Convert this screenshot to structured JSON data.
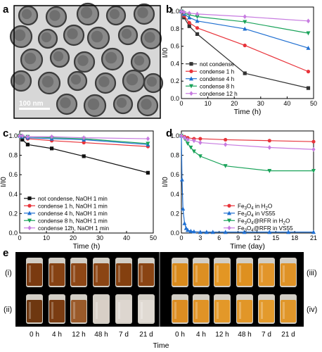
{
  "panels": {
    "a": {
      "letter": "a",
      "scale_bar": "100 nm"
    },
    "b": {
      "letter": "b"
    },
    "c": {
      "letter": "c"
    },
    "d": {
      "letter": "d"
    },
    "e": {
      "letter": "e"
    }
  },
  "chart_data": [
    {
      "id": "b",
      "type": "line",
      "xlabel": "Time (h)",
      "ylabel": "I/I0",
      "xlim": [
        0,
        50
      ],
      "ylim": [
        0,
        1.05
      ],
      "xticks": [
        0,
        10,
        20,
        30,
        40,
        50
      ],
      "yticks": [
        0.0,
        0.2,
        0.4,
        0.6,
        0.8,
        1.0
      ],
      "legend_position": "bottom-left",
      "series": [
        {
          "name": "not condense",
          "color": "#333333",
          "marker": "square",
          "x": [
            0,
            1,
            3,
            6,
            24,
            48
          ],
          "y": [
            1.0,
            0.93,
            0.83,
            0.74,
            0.29,
            0.12
          ]
        },
        {
          "name": "condense 1 h",
          "color": "#e8333a",
          "marker": "circle",
          "x": [
            0,
            1,
            3,
            6,
            24,
            48
          ],
          "y": [
            1.0,
            0.95,
            0.87,
            0.81,
            0.61,
            0.31
          ]
        },
        {
          "name": "condense 4 h",
          "color": "#1f6fd1",
          "marker": "triangle",
          "x": [
            0,
            1,
            3,
            6,
            24,
            48
          ],
          "y": [
            1.0,
            0.97,
            0.93,
            0.89,
            0.8,
            0.58
          ]
        },
        {
          "name": "condense 8 h",
          "color": "#1aa35a",
          "marker": "triangle-down",
          "x": [
            0,
            1,
            3,
            6,
            24,
            48
          ],
          "y": [
            1.0,
            0.98,
            0.96,
            0.94,
            0.88,
            0.75
          ]
        },
        {
          "name": "condense 12 h",
          "color": "#c77be0",
          "marker": "diamond",
          "x": [
            0,
            1,
            3,
            6,
            24,
            48
          ],
          "y": [
            1.0,
            0.99,
            0.98,
            0.97,
            0.94,
            0.89
          ]
        }
      ]
    },
    {
      "id": "c",
      "type": "line",
      "xlabel": "Time (h)",
      "ylabel": "I/I0",
      "xlim": [
        0,
        50
      ],
      "ylim": [
        0,
        1.05
      ],
      "xticks": [
        0,
        10,
        20,
        30,
        40,
        50
      ],
      "yticks": [
        0.0,
        0.2,
        0.4,
        0.6,
        0.8,
        1.0
      ],
      "legend_position": "bottom-left",
      "series": [
        {
          "name": "not condense, NaOH 1 min",
          "color": "#111111",
          "marker": "square",
          "x": [
            0,
            1,
            3,
            12,
            24,
            48
          ],
          "y": [
            1.0,
            0.96,
            0.91,
            0.87,
            0.79,
            0.62
          ]
        },
        {
          "name": "condense 1 h, NaOH 1 min",
          "color": "#e8333a",
          "marker": "circle",
          "x": [
            0,
            1,
            3,
            12,
            24,
            48
          ],
          "y": [
            1.0,
            0.99,
            0.97,
            0.95,
            0.93,
            0.89
          ]
        },
        {
          "name": "condense 4 h, NaOH 1 min",
          "color": "#1f6fd1",
          "marker": "triangle",
          "x": [
            0,
            1,
            3,
            12,
            24,
            48
          ],
          "y": [
            1.0,
            0.99,
            0.98,
            0.97,
            0.96,
            0.91
          ]
        },
        {
          "name": "condense 8 h, NaOH 1 min",
          "color": "#1aa35a",
          "marker": "triangle-down",
          "x": [
            0,
            1,
            3,
            12,
            24,
            48
          ],
          "y": [
            1.0,
            0.99,
            0.99,
            0.98,
            0.97,
            0.92
          ]
        },
        {
          "name": "condense 12h, NaOH 1 min",
          "color": "#c77be0",
          "marker": "diamond",
          "x": [
            0,
            1,
            3,
            12,
            24,
            48
          ],
          "y": [
            1.0,
            1.0,
            0.99,
            0.99,
            0.98,
            0.97
          ]
        }
      ]
    },
    {
      "id": "d",
      "type": "line",
      "xlabel": "Time (day)",
      "ylabel": "I/I0",
      "xlim": [
        0,
        21
      ],
      "ylim": [
        0,
        1.05
      ],
      "xticks": [
        0,
        3,
        6,
        9,
        12,
        15,
        18,
        21
      ],
      "yticks": [
        0.0,
        0.2,
        0.4,
        0.6,
        0.8,
        1.0
      ],
      "legend_position": "bottom-right",
      "series": [
        {
          "name": "Fe3O4 in H2O",
          "legend_parts": [
            [
              "Fe",
              "n"
            ],
            [
              "3",
              "s"
            ],
            [
              "O",
              "n"
            ],
            [
              "4",
              "s"
            ],
            [
              " in H",
              "n"
            ],
            [
              "2",
              "s"
            ],
            [
              "O",
              "n"
            ]
          ],
          "color": "#e8333a",
          "marker": "circle",
          "x": [
            0,
            0.5,
            1,
            2,
            3,
            7,
            14,
            21
          ],
          "y": [
            1.0,
            0.99,
            0.98,
            0.97,
            0.97,
            0.96,
            0.95,
            0.94
          ]
        },
        {
          "name": "Fe3O4 in VS55",
          "legend_parts": [
            [
              "Fe",
              "n"
            ],
            [
              "3",
              "s"
            ],
            [
              "O",
              "n"
            ],
            [
              "4",
              "s"
            ],
            [
              " in VS55",
              "n"
            ]
          ],
          "color": "#1f6fd1",
          "marker": "triangle",
          "x": [
            0,
            0.1,
            0.25,
            0.5,
            0.75,
            1,
            1.5,
            2,
            3,
            4,
            5,
            7,
            10,
            14,
            17,
            21
          ],
          "y": [
            1.0,
            0.55,
            0.25,
            0.1,
            0.05,
            0.03,
            0.02,
            0.015,
            0.01,
            0.01,
            0.01,
            0.01,
            0.01,
            0.01,
            0.01,
            0.01
          ]
        },
        {
          "name": "Fe3O4@RFR in H2O",
          "legend_parts": [
            [
              "Fe",
              "n"
            ],
            [
              "3",
              "s"
            ],
            [
              "O",
              "n"
            ],
            [
              "4",
              "s"
            ],
            [
              "@RFR in H",
              "n"
            ],
            [
              "2",
              "s"
            ],
            [
              "O",
              "n"
            ]
          ],
          "color": "#1aa35a",
          "marker": "triangle-down",
          "x": [
            0,
            0.5,
            1,
            1.5,
            2,
            3,
            7,
            14,
            21
          ],
          "y": [
            1.0,
            0.97,
            0.92,
            0.88,
            0.84,
            0.79,
            0.69,
            0.64,
            0.64
          ]
        },
        {
          "name": "Fe3O4@RFR in VS55",
          "legend_parts": [
            [
              "Fe",
              "n"
            ],
            [
              "3",
              "s"
            ],
            [
              "O",
              "n"
            ],
            [
              "4",
              "s"
            ],
            [
              "@RFR in VS55",
              "n"
            ]
          ],
          "color": "#c77be0",
          "marker": "diamond",
          "x": [
            0,
            0.5,
            1,
            2,
            3,
            7,
            14,
            21
          ],
          "y": [
            1.0,
            0.98,
            0.96,
            0.95,
            0.93,
            0.91,
            0.88,
            0.86
          ]
        }
      ]
    }
  ],
  "panel_e": {
    "times": [
      "0 h",
      "4 h",
      "12 h",
      "48 h",
      "7 d",
      "21 d"
    ],
    "xlabel": "Time",
    "row_labels_left": [
      "(i)",
      "(ii)"
    ],
    "row_labels_right": [
      "(iii)",
      "(iv)"
    ],
    "vials": {
      "i": [
        "#7a3a10",
        "#864213",
        "#8e4716",
        "#8b4514",
        "#84400f",
        "#8a4413"
      ],
      "ii": [
        "#6e3710",
        "#7a3c12",
        "#9a5a2a",
        "#d8cfc6",
        "#ddd6cf",
        "#e0dad3"
      ],
      "iii": [
        "#d98a1c",
        "#dc8f22",
        "#e39624",
        "#de9020",
        "#e2952a",
        "#df9226"
      ],
      "iv": [
        "#dd8d22",
        "#e09326",
        "#e39829",
        "#e19628",
        "#e39a2c",
        "#e0962a"
      ]
    }
  }
}
